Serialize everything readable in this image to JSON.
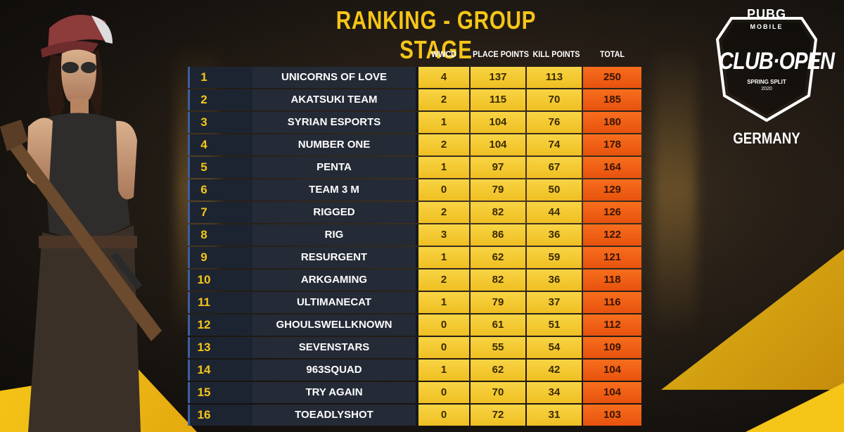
{
  "title": "RANKING - GROUP STAGE",
  "columns": {
    "wwcd": "WWCD",
    "place": "PLACE POINTS",
    "kill": "KILL POINTS",
    "total": "TOTAL"
  },
  "rows": [
    {
      "rank": "1",
      "team": "UNICORNS OF LOVE",
      "wwcd": "4",
      "place": "137",
      "kill": "113",
      "total": "250"
    },
    {
      "rank": "2",
      "team": "AKATSUKI TEAM",
      "wwcd": "2",
      "place": "115",
      "kill": "70",
      "total": "185"
    },
    {
      "rank": "3",
      "team": "SYRIAN ESPORTS",
      "wwcd": "1",
      "place": "104",
      "kill": "76",
      "total": "180"
    },
    {
      "rank": "4",
      "team": "NUMBER ONE",
      "wwcd": "2",
      "place": "104",
      "kill": "74",
      "total": "178"
    },
    {
      "rank": "5",
      "team": "PENTA",
      "wwcd": "1",
      "place": "97",
      "kill": "67",
      "total": "164"
    },
    {
      "rank": "6",
      "team": "TEAM 3 M",
      "wwcd": "0",
      "place": "79",
      "kill": "50",
      "total": "129"
    },
    {
      "rank": "7",
      "team": "RIGGED",
      "wwcd": "2",
      "place": "82",
      "kill": "44",
      "total": "126"
    },
    {
      "rank": "8",
      "team": "RIG",
      "wwcd": "3",
      "place": "86",
      "kill": "36",
      "total": "122"
    },
    {
      "rank": "9",
      "team": "RESURGENT",
      "wwcd": "1",
      "place": "62",
      "kill": "59",
      "total": "121"
    },
    {
      "rank": "10",
      "team": "ARKGAMING",
      "wwcd": "2",
      "place": "82",
      "kill": "36",
      "total": "118"
    },
    {
      "rank": "11",
      "team": "ULTIMANECAT",
      "wwcd": "1",
      "place": "79",
      "kill": "37",
      "total": "116"
    },
    {
      "rank": "12",
      "team": "GHOULSWELLKNOWN",
      "wwcd": "0",
      "place": "61",
      "kill": "51",
      "total": "112"
    },
    {
      "rank": "13",
      "team": "SEVENSTARS",
      "wwcd": "0",
      "place": "55",
      "kill": "54",
      "total": "109"
    },
    {
      "rank": "14",
      "team": "963SQUAD",
      "wwcd": "1",
      "place": "62",
      "kill": "42",
      "total": "104"
    },
    {
      "rank": "15",
      "team": "TRY AGAIN",
      "wwcd": "0",
      "place": "70",
      "kill": "34",
      "total": "104"
    },
    {
      "rank": "16",
      "team": "TOEADLYSHOT",
      "wwcd": "0",
      "place": "72",
      "kill": "31",
      "total": "103"
    }
  ],
  "logo": {
    "brand": "PUBG",
    "sub": "MOBILE",
    "event": "CLUB·OPEN",
    "split": "SPRING SPLIT",
    "year": "2020"
  },
  "region": "GERMANY",
  "colors": {
    "accent_yellow": "#f5c518",
    "total_orange": "#f0601a",
    "row_dark": "#242a36",
    "rank_border": "#3d5f9e"
  },
  "icons": [
    "character-illustration",
    "club-open-shield-logo"
  ]
}
